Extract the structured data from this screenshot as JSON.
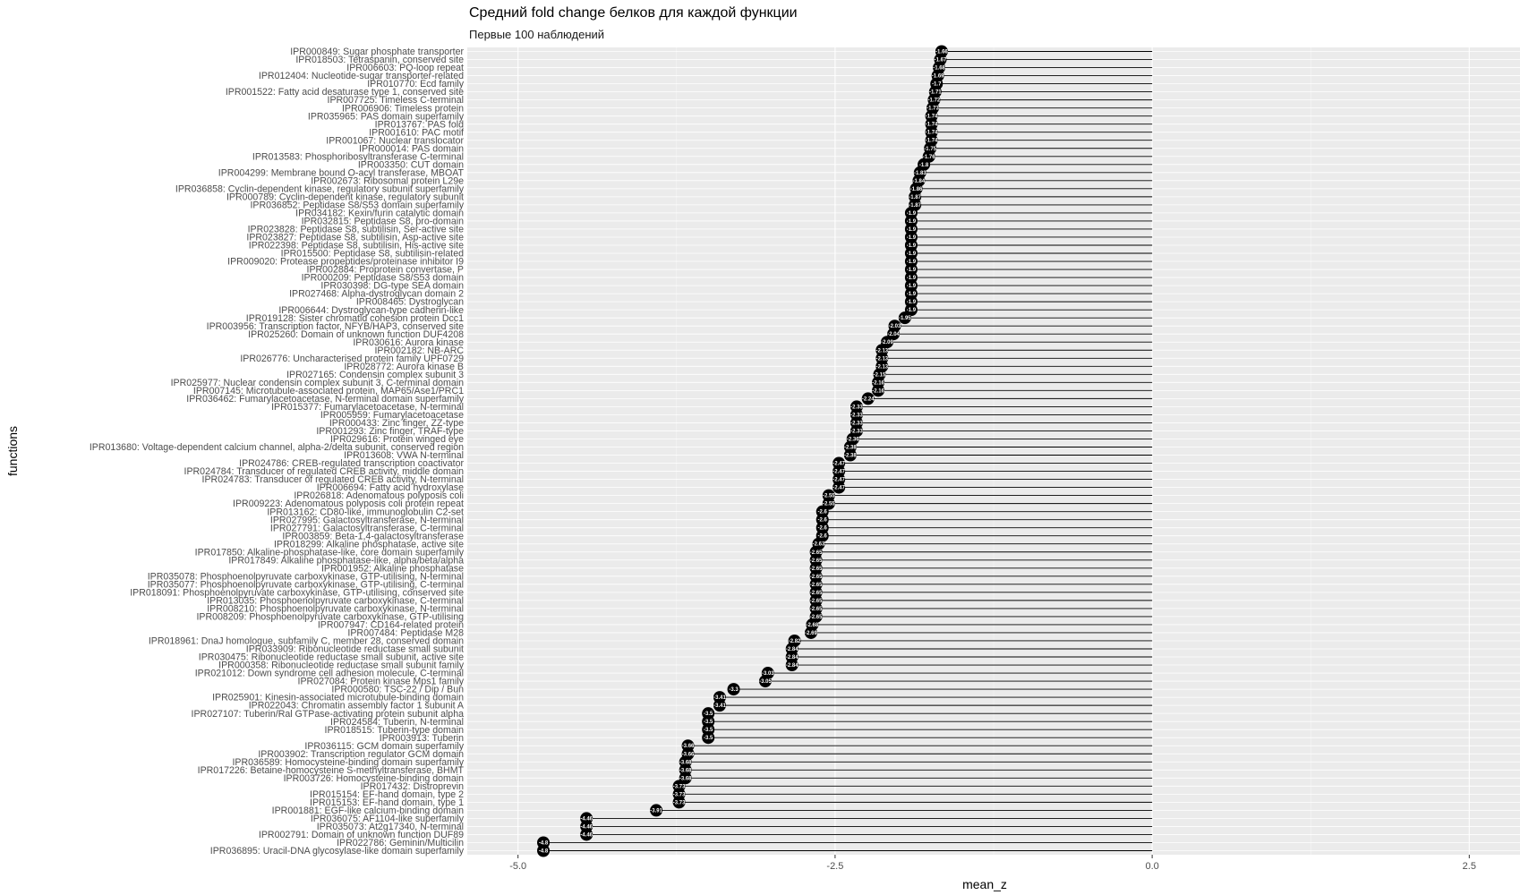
{
  "chart_data": {
    "type": "lollipop",
    "title": "Средний fold change белков для каждой функции",
    "subtitle": "Первые 100 наблюдений",
    "xlabel": "mean_z",
    "ylabel": "functions",
    "xlim": [
      -5.4,
      2.9
    ],
    "xticks": [
      -5.0,
      -2.5,
      0.0,
      2.5
    ],
    "xtick_labels": [
      "-5.0",
      "-2.5",
      "0.0",
      "2.5"
    ],
    "grid": true,
    "background": "#ebebeb",
    "point_color": "#000000",
    "categories": [
      "IPR000849: Sugar phosphate transporter",
      "IPR018503: Tetraspanin, conserved site",
      "IPR006603: PQ-loop repeat",
      "IPR012404: Nucleotide-sugar transporter-related",
      "IPR010770: Ecd family",
      "IPR001522: Fatty acid desaturase type 1, conserved site",
      "IPR007725: Timeless C-terminal",
      "IPR006906: Timeless protein",
      "IPR035965: PAS domain superfamily",
      "IPR013767: PAS fold",
      "IPR001610: PAC motif",
      "IPR001067: Nuclear translocator",
      "IPR000014: PAS domain",
      "IPR013583: Phosphoribosyltransferase C-terminal",
      "IPR003350: CUT domain",
      "IPR004299: Membrane bound O-acyl transferase, MBOAT",
      "IPR002673: Ribosomal protein L29e",
      "IPR036858: Cyclin-dependent kinase, regulatory subunit superfamily",
      "IPR000789: Cyclin-dependent kinase, regulatory subunit",
      "IPR036852: Peptidase S8/S53 domain superfamily",
      "IPR034182: Kexin/furin catalytic domain",
      "IPR032815: Peptidase S8, pro-domain",
      "IPR023828: Peptidase S8, subtilisin, Ser-active site",
      "IPR023827: Peptidase S8, subtilisin, Asp-active site",
      "IPR022398: Peptidase S8, subtilisin, His-active site",
      "IPR015500: Peptidase S8, subtilisin-related",
      "IPR009020: Protease propeptides/proteinase inhibitor I9",
      "IPR002884: Proprotein convertase, P",
      "IPR000209: Peptidase S8/S53 domain",
      "IPR030398: DG-type SEA domain",
      "IPR027468: Alpha-dystroglycan domain 2",
      "IPR008465: Dystroglycan",
      "IPR006644: Dystroglycan-type cadherin-like",
      "IPR019128: Sister chromatid cohesion protein Dcc1",
      "IPR003956: Transcription factor, NFYB/HAP3, conserved site",
      "IPR025260: Domain of unknown function DUF4208",
      "IPR030616: Aurora kinase",
      "IPR002182: NB-ARC",
      "IPR026776: Uncharacterised protein family UPF0729",
      "IPR028772: Aurora kinase B",
      "IPR027165: Condensin complex subunit 3",
      "IPR025977: Nuclear condensin complex subunit 3, C-terminal domain",
      "IPR007145: Microtubule-associated protein, MAP65/Ase1/PRC1",
      "IPR036462: Fumarylacetoacetase, N-terminal domain superfamily",
      "IPR015377: Fumarylacetoacetase, N-terminal",
      "IPR005959: Fumarylacetoacetase",
      "IPR000433: Zinc finger, ZZ-type",
      "IPR001293: Zinc finger, TRAF-type",
      "IPR029616: Protein winged eye",
      "IPR013680: Voltage-dependent calcium channel, alpha-2/delta subunit, conserved region",
      "IPR013608: VWA N-terminal",
      "IPR024786: CREB-regulated transcription coactivator",
      "IPR024784: Transducer of regulated CREB activity, middle domain",
      "IPR024783: Transducer of regulated CREB activity, N-terminal",
      "IPR006694: Fatty acid hydroxylase",
      "IPR026818: Adenomatous polyposis coli",
      "IPR009223: Adenomatous polyposis coli protein repeat",
      "IPR013162: CD80-like, immunoglobulin C2-set",
      "IPR027995: Galactosyltransferase, N-terminal",
      "IPR027791: Galactosyltransferase, C-terminal",
      "IPR003859: Beta-1,4-galactosyltransferase",
      "IPR018299: Alkaline phosphatase, active site",
      "IPR017850: Alkaline-phosphatase-like, core domain superfamily",
      "IPR017849: Alkaline phosphatase-like, alpha/beta/alpha",
      "IPR001952: Alkaline phosphatase",
      "IPR035078: Phosphoenolpyruvate carboxykinase, GTP-utilising, N-terminal",
      "IPR035077: Phosphoenolpyruvate carboxykinase, GTP-utilising, C-terminal",
      "IPR018091: Phosphoenolpyruvate carboxykinase, GTP-utilising, conserved site",
      "IPR013035: Phosphoenolpyruvate carboxykinase, C-terminal",
      "IPR008210: Phosphoenolpyruvate carboxykinase, N-terminal",
      "IPR008209: Phosphoenolpyruvate carboxykinase, GTP-utilising",
      "IPR007947: CD164-related protein",
      "IPR007484: Peptidase M28",
      "IPR018961: DnaJ homologue, subfamily C, member 28, conserved domain",
      "IPR033909: Ribonucleotide reductase small subunit",
      "IPR030475: Ribonucleotide reductase small subunit, active site",
      "IPR000358: Ribonucleotide reductase small subunit family",
      "IPR021012: Down syndrome cell adhesion molecule, C-terminal",
      "IPR027084: Protein kinase Mps1 family",
      "IPR000580: TSC-22 / Dip / Bun",
      "IPR025901: Kinesin-associated microtubule-binding domain",
      "IPR022043: Chromatin assembly factor 1 subunit A",
      "IPR027107: Tuberin/Ral GTPase-activating protein subunit alpha",
      "IPR024584: Tuberin, N-terminal",
      "IPR018515: Tuberin-type domain",
      "IPR003913: Tuberin",
      "IPR036115: GCM domain superfamily",
      "IPR003902: Transcription regulator GCM domain",
      "IPR036589: Homocysteine-binding domain superfamily",
      "IPR017226: Betaine-homocysteine S-methyltransferase, BHMT",
      "IPR003726: Homocysteine-binding domain",
      "IPR017432: Distroprevin",
      "IPR015154: EF-hand domain, type 2",
      "IPR015153: EF-hand domain, type 1",
      "IPR001881: EGF-like calcium-binding domain",
      "IPR036075: AF1104-like superfamily",
      "IPR035073: At2g17340, N-terminal",
      "IPR002791: Domain of unknown function DUF89",
      "IPR022786: Geminin/Multicilin",
      "IPR036895: Uracil-DNA glycosylase-like domain superfamily"
    ],
    "values": [
      -1.66,
      -1.67,
      -1.68,
      -1.69,
      -1.7,
      -1.71,
      -1.72,
      -1.73,
      -1.74,
      -1.74,
      -1.74,
      -1.74,
      -1.75,
      -1.76,
      -1.8,
      -1.83,
      -1.84,
      -1.86,
      -1.87,
      -1.87,
      -1.9,
      -1.9,
      -1.9,
      -1.9,
      -1.9,
      -1.9,
      -1.9,
      -1.9,
      -1.9,
      -1.9,
      -1.9,
      -1.9,
      -1.9,
      -1.95,
      -2.03,
      -2.04,
      -2.09,
      -2.13,
      -2.13,
      -2.13,
      -2.15,
      -2.16,
      -2.16,
      -2.24,
      -2.33,
      -2.33,
      -2.33,
      -2.33,
      -2.36,
      -2.38,
      -2.38,
      -2.47,
      -2.47,
      -2.47,
      -2.47,
      -2.55,
      -2.55,
      -2.6,
      -2.6,
      -2.6,
      -2.6,
      -2.63,
      -2.65,
      -2.65,
      -2.65,
      -2.65,
      -2.65,
      -2.65,
      -2.65,
      -2.65,
      -2.65,
      -2.68,
      -2.69,
      -2.82,
      -2.84,
      -2.84,
      -2.84,
      -3.03,
      -3.05,
      -3.3,
      -3.41,
      -3.41,
      -3.5,
      -3.5,
      -3.5,
      -3.5,
      -3.66,
      -3.66,
      -3.68,
      -3.68,
      -3.68,
      -3.73,
      -3.73,
      -3.73,
      -3.91,
      -4.46,
      -4.46,
      -4.46,
      -4.8,
      -4.8
    ],
    "data_labels": [
      "-1.66",
      "-1.67",
      "-1.68",
      "-1.69",
      "-1.7",
      "-1.71",
      "-1.72",
      "-1.73",
      "-1.74",
      "-1.74",
      "-1.74",
      "-1.74",
      "-1.75",
      "-1.76",
      "-1.8",
      "-1.83",
      "-1.84",
      "-1.86",
      "-1.87",
      "-1.87",
      "-1.9",
      "-1.9",
      "-1.9",
      "-1.9",
      "-1.9",
      "-1.9",
      "-1.9",
      "-1.9",
      "-1.9",
      "-1.9",
      "-1.9",
      "-1.9",
      "-1.9",
      "-1.95",
      "-2.03",
      "-2.04",
      "-2.09",
      "-2.13",
      "-2.13",
      "-2.13",
      "-2.15",
      "-2.16",
      "-2.16",
      "-2.24",
      "-2.33",
      "-2.33",
      "-2.33",
      "-2.33",
      "-2.36",
      "-2.38",
      "-2.38",
      "-2.47",
      "-2.47",
      "-2.47",
      "-2.47",
      "-2.55",
      "-2.55",
      "-2.6",
      "-2.6",
      "-2.6",
      "-2.6",
      "-2.63",
      "-2.65",
      "-2.65",
      "-2.65",
      "-2.65",
      "-2.65",
      "-2.65",
      "-2.65",
      "-2.65",
      "-2.65",
      "-2.68",
      "-2.69",
      "-2.82",
      "-2.84",
      "-2.84",
      "-2.84",
      "-3.03",
      "-3.05",
      "-3.3",
      "-3.41",
      "-3.41",
      "-3.5",
      "-3.5",
      "-3.5",
      "-3.5",
      "-3.66",
      "-3.66",
      "-3.68",
      "-3.68",
      "-3.68",
      "-3.73",
      "-3.73",
      "-3.73",
      "-3.91",
      "-4.46",
      "-4.46",
      "-4.46",
      "-4.8",
      "-4.8"
    ]
  }
}
